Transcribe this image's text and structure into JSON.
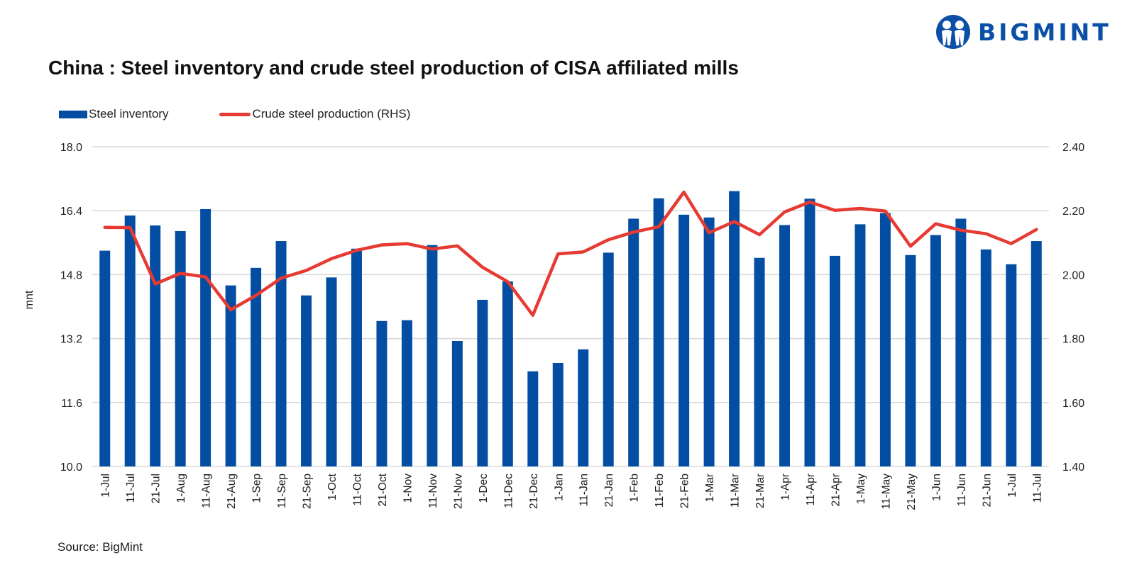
{
  "logo": {
    "text": "BIGMINT",
    "icon": "bigmint-people-icon",
    "color": "#0b4fa6"
  },
  "source": "Source: BigMint",
  "chart_data": {
    "type": "bar+line",
    "title": "China : Steel inventory and crude steel production of CISA affiliated mills",
    "xlabel": "",
    "ylabel": "mnt",
    "ylabel_right": "",
    "ylim": [
      10.0,
      18.0
    ],
    "ylim_right": [
      1.4,
      2.4
    ],
    "yticks": [
      "10.0",
      "11.6",
      "13.2",
      "14.8",
      "16.4",
      "18.0"
    ],
    "yticks_right": [
      "1.40",
      "1.60",
      "1.80",
      "2.00",
      "2.20",
      "2.40"
    ],
    "grid": true,
    "legend_position": "top-left",
    "categories": [
      "1-Jul",
      "11-Jul",
      "21-Jul",
      "1-Aug",
      "11-Aug",
      "21-Aug",
      "1-Sep",
      "11-Sep",
      "21-Sep",
      "1-Oct",
      "11-Oct",
      "21-Oct",
      "1-Nov",
      "11-Nov",
      "21-Nov",
      "1-Dec",
      "11-Dec",
      "21-Dec",
      "1-Jan",
      "11-Jan",
      "21-Jan",
      "1-Feb",
      "11-Feb",
      "21-Feb",
      "1-Mar",
      "11-Mar",
      "21-Mar",
      "1-Apr",
      "11-Apr",
      "21-Apr",
      "1-May",
      "11-May",
      "21-May",
      "1-Jun",
      "11-Jun",
      "21-Jun",
      "1-Jul",
      "11-Jul"
    ],
    "series": [
      {
        "name": "Steel inventory",
        "type": "bar",
        "axis": "left",
        "color": "#034ea2",
        "values": [
          15.4,
          16.28,
          16.03,
          15.89,
          16.44,
          14.53,
          14.97,
          15.64,
          14.28,
          14.73,
          15.45,
          13.64,
          13.66,
          15.54,
          13.14,
          14.17,
          14.63,
          12.38,
          12.59,
          12.93,
          15.35,
          16.2,
          16.71,
          16.3,
          16.23,
          16.89,
          15.22,
          16.04,
          16.7,
          15.27,
          16.06,
          16.34,
          15.29,
          15.79,
          16.2,
          15.43,
          15.06,
          15.64
        ]
      },
      {
        "name": "Crude steel production (RHS)",
        "type": "line",
        "axis": "right",
        "color": "#e63a33",
        "values": [
          2.148,
          2.147,
          1.971,
          2.004,
          1.993,
          1.89,
          1.935,
          1.989,
          2.013,
          2.05,
          2.076,
          2.093,
          2.097,
          2.08,
          2.09,
          2.023,
          1.978,
          1.873,
          2.065,
          2.071,
          2.109,
          2.133,
          2.15,
          2.258,
          2.131,
          2.166,
          2.125,
          2.196,
          2.227,
          2.201,
          2.207,
          2.199,
          2.089,
          2.159,
          2.139,
          2.128,
          2.097,
          2.141
        ]
      }
    ]
  }
}
